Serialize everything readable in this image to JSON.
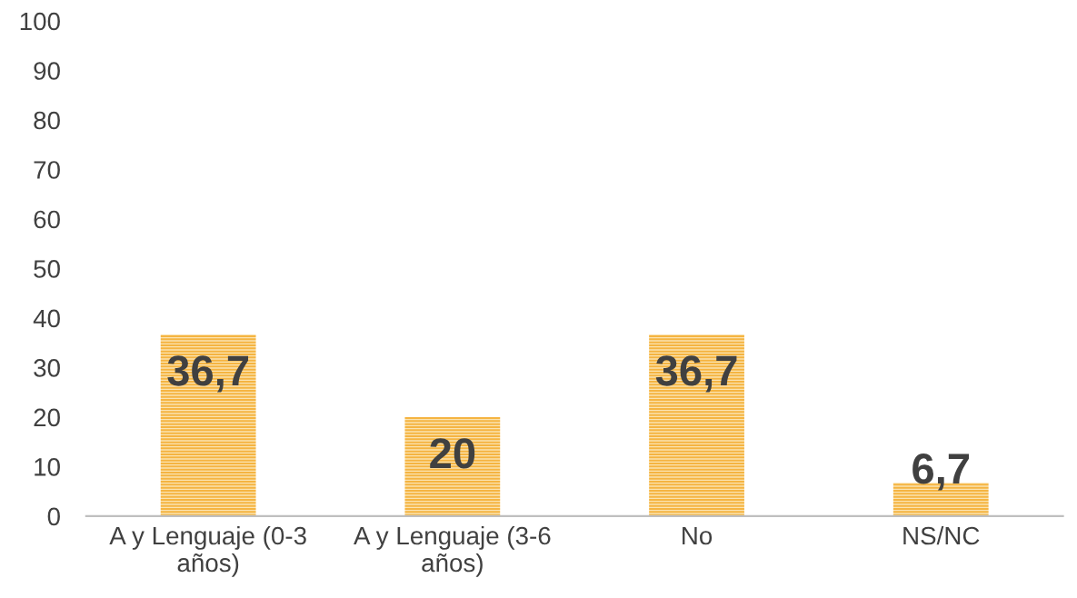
{
  "chart_data": {
    "type": "bar",
    "categories": [
      "A y Lenguaje (0-3\naños)",
      "A y Lenguaje (3-6\naños)",
      "No",
      "NS/NC"
    ],
    "values": [
      36.7,
      20,
      36.7,
      6.7
    ],
    "value_labels": [
      "36,7",
      "20",
      "36,7",
      "6,7"
    ],
    "color": "#f5b441",
    "ylim": [
      0,
      100
    ],
    "yticks": [
      0,
      10,
      20,
      30,
      40,
      50,
      60,
      70,
      80,
      90,
      100
    ],
    "grid": false,
    "legend": false
  }
}
